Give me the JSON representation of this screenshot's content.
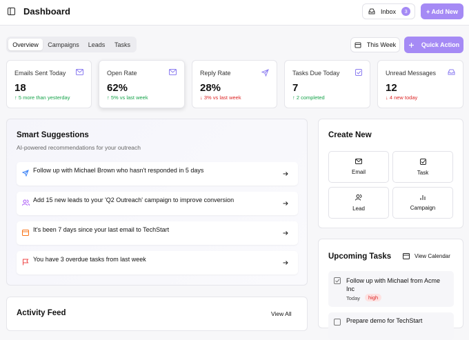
{
  "header": {
    "title": "Dashboard",
    "inbox": "Inbox",
    "inbox_count": "3",
    "add_new": "+ Add New"
  },
  "tabs": [
    "Overview",
    "Campaigns",
    "Leads",
    "Tasks"
  ],
  "period": "This Week",
  "quick_action": "Quick Action",
  "stats": [
    {
      "label": "Emails Sent Today",
      "value": "18",
      "change": "↑ 5 more than yesterday"
    },
    {
      "label": "Open Rate",
      "value": "62%",
      "change": "↑ 5% vs last week"
    },
    {
      "label": "Reply Rate",
      "value": "28%",
      "change": "↓ 3% vs last week"
    },
    {
      "label": "Tasks Due Today",
      "value": "7",
      "change": "↑ 2 completed"
    },
    {
      "label": "Unread Messages",
      "value": "12",
      "change": "↓ 4 new today"
    }
  ],
  "suggestions": {
    "title": "Smart Suggestions",
    "subtitle": "AI-powered recommendations for your outreach",
    "items": [
      "Follow up with Michael Brown who hasn't responded in 5 days",
      "Add 15 new leads to your 'Q2 Outreach' campaign to improve conversion",
      "It's been 7 days since your last email to TechStart",
      "You have 3 overdue tasks from last week"
    ]
  },
  "create_new": {
    "title": "Create New",
    "options": [
      "Email",
      "Task",
      "Lead",
      "Campaign"
    ]
  },
  "upcoming_tasks": {
    "title": "Upcoming Tasks",
    "view_calendar": "View Calendar",
    "items": [
      {
        "title": "Follow up with Michael from Acme Inc",
        "due": "Today",
        "priority": "high"
      },
      {
        "title": "Prepare demo for TechStart"
      }
    ]
  },
  "activity_feed": {
    "title": "Activity Feed",
    "view_all": "View All"
  }
}
